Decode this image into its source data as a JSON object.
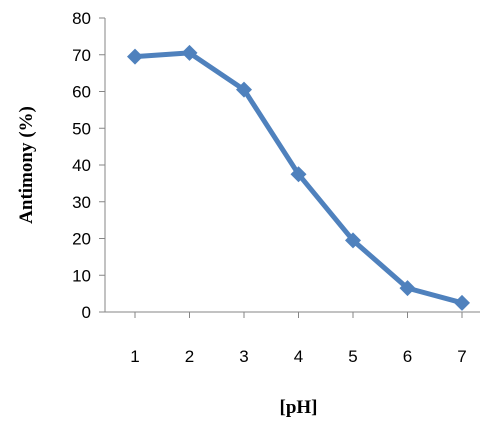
{
  "chart_data": {
    "type": "line",
    "title": "",
    "xlabel": "[pH]",
    "ylabel": "Antimony (%)",
    "categories": [
      "1",
      "2",
      "3",
      "4",
      "5",
      "6",
      "7"
    ],
    "x": [
      1,
      2,
      3,
      4,
      5,
      6,
      7
    ],
    "series": [
      {
        "values": [
          69.5,
          70.5,
          60.5,
          37.5,
          19.5,
          6.5,
          2.5
        ],
        "color": "#4F81BD",
        "marker": "diamond"
      }
    ],
    "ylim": [
      0,
      80
    ],
    "yticks": [
      0,
      10,
      20,
      30,
      40,
      50,
      60,
      70,
      80
    ],
    "grid": false,
    "legend": "none"
  }
}
